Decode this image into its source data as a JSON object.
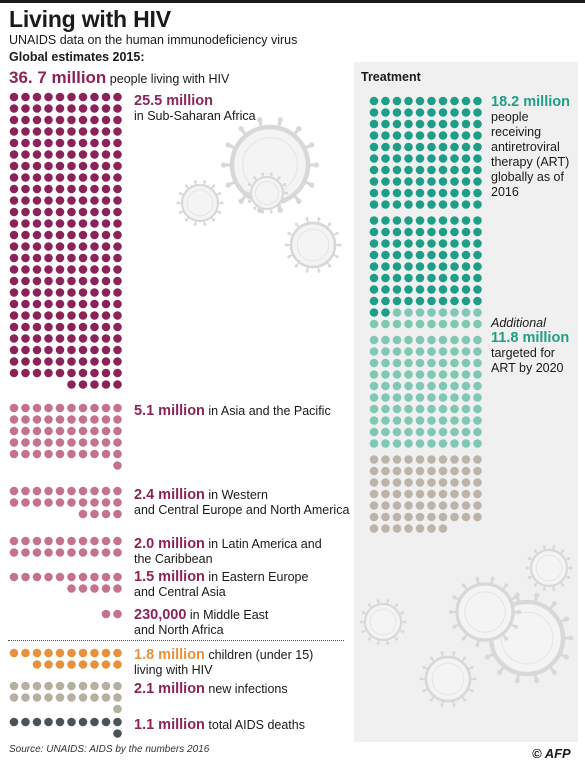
{
  "header": {
    "title": "Living with HIV",
    "subtitle": "UNAIDS data on the human immunodeficiency virus",
    "estimates_label": "Global estimates 2015:",
    "total_value": "36. 7 million",
    "total_text": " people living with HIV"
  },
  "treatment": {
    "title": "Treatment",
    "receiving_value": "18.2 million",
    "receiving_text": "people receiving antiretroviral therapy (ART) globally as of 2016",
    "additional_word": "Additional",
    "targeted_value": "11.8 million",
    "targeted_text": "targeted for ART by 2020"
  },
  "regions": [
    {
      "value": "25.5 million",
      "text": " in Sub-Saharan Africa",
      "line2": ""
    },
    {
      "value": "5.1 million",
      "text": " in Asia and the Pacific",
      "line2": ""
    },
    {
      "value": "2.4 million",
      "text": " in Western",
      "line2": "and Central Europe and North America"
    },
    {
      "value": "2.0 million",
      "text": " in Latin America and",
      "line2": "the Caribbean"
    },
    {
      "value": "1.5 million",
      "text": " in Eastern Europe",
      "line2": "and Central Asia"
    },
    {
      "value": "230,000",
      "text": " in Middle East",
      "line2": "and North Africa"
    }
  ],
  "others": [
    {
      "value": "1.8 million",
      "text": " children (under 15)",
      "line2": "living with HIV"
    },
    {
      "value": "2.1 million",
      "text": " new infections",
      "line2": ""
    },
    {
      "value": "1.1 million",
      "text": " total AIDS deaths",
      "line2": ""
    }
  ],
  "footer": {
    "source": "Source: UNAIDS: AIDS by the numbers 2016",
    "logo": "© AFP"
  },
  "colors": {
    "ssa": "#8c2358",
    "other_regions": "#c4728f",
    "art_receiving": "#1e9e87",
    "art_target": "#7fc8b3",
    "art_remaining": "#bcb3a9",
    "children": "#e8913a",
    "new_infections": "#b5b09f",
    "deaths": "#4a5458",
    "virus": "#d8d8d8"
  },
  "chart_data": {
    "type": "pictogram",
    "unit_per_dot": "0.1 million people",
    "series": [
      {
        "name": "Sub-Saharan Africa",
        "values": [
          25.5
        ],
        "dots": 255
      },
      {
        "name": "Asia and the Pacific",
        "values": [
          5.1
        ],
        "dots": 51
      },
      {
        "name": "Western and Central Europe and North America",
        "values": [
          2.4
        ],
        "dots": 24
      },
      {
        "name": "Latin America and the Caribbean",
        "values": [
          2.0
        ],
        "dots": 20
      },
      {
        "name": "Eastern Europe and Central Asia",
        "values": [
          1.5
        ],
        "dots": 15
      },
      {
        "name": "Middle East and North Africa",
        "values": [
          0.23
        ],
        "dots": 2
      },
      {
        "name": "people receiving antiretroviral therapy (ART) globally as of 2016",
        "values": [
          18.2
        ],
        "dots": 182
      },
      {
        "name": "targeted for ART by 2020",
        "values": [
          11.8
        ],
        "dots": 118
      },
      {
        "name": "children (under 15) living with HIV",
        "values": [
          1.8
        ],
        "dots": 18
      },
      {
        "name": "new infections",
        "values": [
          2.1
        ],
        "dots": 21
      },
      {
        "name": "total AIDS deaths",
        "values": [
          1.1
        ],
        "dots": 11
      }
    ]
  }
}
